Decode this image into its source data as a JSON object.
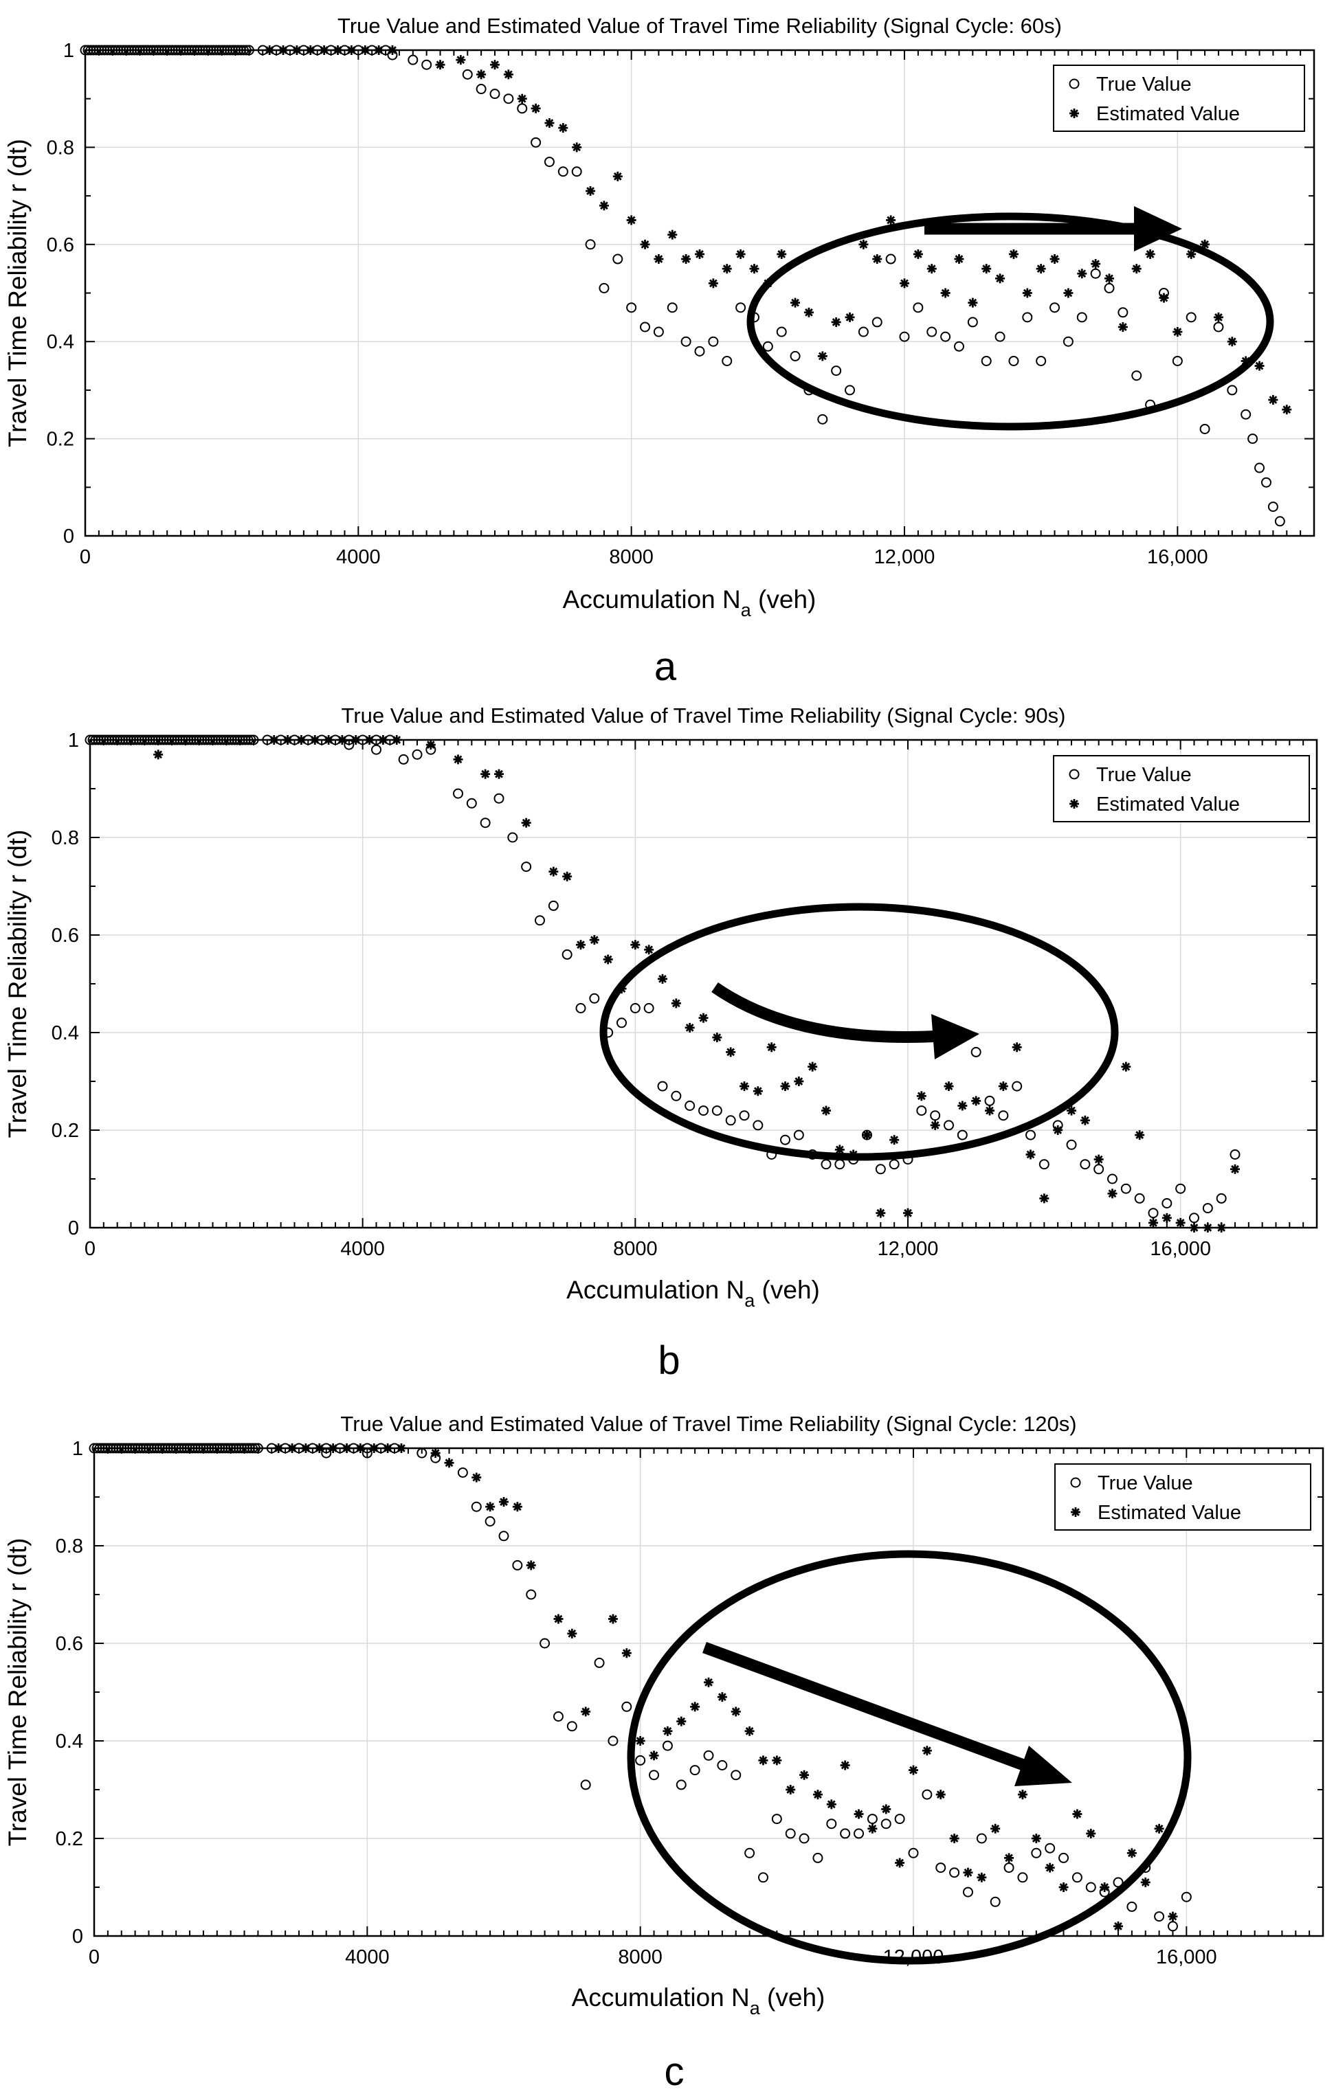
{
  "chart_data": [
    {
      "type": "scatter",
      "title": "True Value and Estimated Value of Travel Time Reliability (Signal Cycle: 60s)",
      "xlabel": "Accumulation",
      "xlabel_sub": "a",
      "xlabel_unit": "(veh)",
      "xlabel_main": "Accumulation N",
      "ylabel": "Travel Time Reliability r (dt)",
      "panel_label": "a",
      "xlim": [
        0,
        18000
      ],
      "ylim": [
        0,
        1
      ],
      "xticks": [
        0,
        4000,
        8000,
        12000,
        16000
      ],
      "xtick_labels": [
        "0",
        "4000",
        "8000",
        "12,000",
        "16,000"
      ],
      "yticks": [
        0,
        0.2,
        0.4,
        0.6,
        0.8,
        1
      ],
      "ytick_labels": [
        "0",
        "0.2",
        "0.4",
        "0.6",
        "0.8",
        "1"
      ],
      "legend": [
        "True Value",
        "Estimated Value"
      ],
      "legend_position": "top-right",
      "annotation": "ellipse with straight horizontal arrow",
      "series": [
        {
          "name": "True Value",
          "marker": "circle",
          "x": [
            4500,
            4800,
            5000,
            5600,
            5800,
            6000,
            6200,
            6400,
            6600,
            6800,
            7000,
            7200,
            7400,
            7600,
            7800,
            8000,
            8200,
            8400,
            8600,
            8800,
            9000,
            9200,
            9400,
            9600,
            9800,
            10000,
            10200,
            10400,
            10600,
            10800,
            11000,
            11200,
            11400,
            11600,
            11800,
            12000,
            12200,
            12400,
            12600,
            12800,
            13000,
            13200,
            13400,
            13600,
            13800,
            14000,
            14200,
            14400,
            14600,
            14800,
            15000,
            15200,
            15400,
            15600,
            15800,
            16000,
            16200,
            16400,
            16600,
            16800,
            17000,
            17100,
            17200,
            17300,
            17400,
            17500
          ],
          "y": [
            0.99,
            0.98,
            0.97,
            0.95,
            0.92,
            0.91,
            0.9,
            0.88,
            0.81,
            0.77,
            0.75,
            0.75,
            0.6,
            0.51,
            0.57,
            0.47,
            0.43,
            0.42,
            0.47,
            0.4,
            0.38,
            0.4,
            0.36,
            0.47,
            0.45,
            0.39,
            0.42,
            0.37,
            0.3,
            0.24,
            0.34,
            0.3,
            0.42,
            0.44,
            0.57,
            0.41,
            0.47,
            0.42,
            0.41,
            0.39,
            0.44,
            0.36,
            0.41,
            0.36,
            0.45,
            0.36,
            0.47,
            0.4,
            0.45,
            0.54,
            0.51,
            0.46,
            0.33,
            0.27,
            0.5,
            0.36,
            0.45,
            0.22,
            0.43,
            0.3,
            0.25,
            0.2,
            0.14,
            0.11,
            0.06,
            0.03
          ]
        },
        {
          "name": "Estimated Value",
          "marker": "asterisk",
          "x": [
            5200,
            5500,
            5800,
            6000,
            6200,
            6400,
            6600,
            6800,
            7000,
            7200,
            7400,
            7600,
            7800,
            8000,
            8200,
            8400,
            8600,
            8800,
            9000,
            9200,
            9400,
            9600,
            9800,
            10000,
            10200,
            10400,
            10600,
            10800,
            11000,
            11200,
            11400,
            11600,
            11800,
            12000,
            12200,
            12400,
            12600,
            12800,
            13000,
            13200,
            13400,
            13600,
            13800,
            14000,
            14200,
            14400,
            14600,
            14800,
            15000,
            15200,
            15400,
            15600,
            15800,
            16000,
            16200,
            16400,
            16600,
            16800,
            17000,
            17200,
            17400,
            17600
          ],
          "y": [
            0.97,
            0.98,
            0.95,
            0.97,
            0.95,
            0.9,
            0.88,
            0.85,
            0.84,
            0.8,
            0.71,
            0.68,
            0.74,
            0.65,
            0.6,
            0.57,
            0.62,
            0.57,
            0.58,
            0.52,
            0.55,
            0.58,
            0.55,
            0.52,
            0.58,
            0.48,
            0.46,
            0.37,
            0.44,
            0.45,
            0.6,
            0.57,
            0.65,
            0.52,
            0.58,
            0.55,
            0.5,
            0.57,
            0.48,
            0.55,
            0.53,
            0.58,
            0.5,
            0.55,
            0.57,
            0.5,
            0.54,
            0.56,
            0.53,
            0.43,
            0.55,
            0.58,
            0.49,
            0.42,
            0.58,
            0.6,
            0.45,
            0.4,
            0.36,
            0.35,
            0.28,
            0.26
          ]
        }
      ]
    },
    {
      "type": "scatter",
      "title": "True Value and Estimated Value of Travel Time Reliability (Signal Cycle: 90s)",
      "xlabel": "Accumulation",
      "xlabel_sub": "a",
      "xlabel_unit": "(veh)",
      "xlabel_main": "Accumulation N",
      "ylabel": "Travel Time Reliability r (dt)",
      "panel_label": "b",
      "xlim": [
        0,
        18000
      ],
      "ylim": [
        0,
        1
      ],
      "xticks": [
        0,
        4000,
        8000,
        12000,
        16000
      ],
      "xtick_labels": [
        "0",
        "4000",
        "8000",
        "12,000",
        "16,000"
      ],
      "yticks": [
        0,
        0.2,
        0.4,
        0.6,
        0.8,
        1
      ],
      "ytick_labels": [
        "0",
        "0.2",
        "0.4",
        "0.6",
        "0.8",
        "1"
      ],
      "legend": [
        "True Value",
        "Estimated Value"
      ],
      "legend_position": "top-right",
      "annotation": "ellipse with curved arrow",
      "series": [
        {
          "name": "True Value",
          "marker": "circle",
          "x": [
            3800,
            4200,
            4600,
            4800,
            5000,
            5400,
            5600,
            5800,
            6000,
            6200,
            6400,
            6600,
            6800,
            7000,
            7200,
            7400,
            7600,
            7800,
            8000,
            8200,
            8400,
            8600,
            8800,
            9000,
            9200,
            9400,
            9600,
            9800,
            10000,
            10200,
            10400,
            10600,
            10800,
            11000,
            11200,
            11400,
            11600,
            11800,
            12000,
            12200,
            12400,
            12600,
            12800,
            13000,
            13200,
            13400,
            13600,
            13800,
            14000,
            14200,
            14400,
            14600,
            14800,
            15000,
            15200,
            15400,
            15600,
            15800,
            16000,
            16200,
            16400,
            16600,
            16800
          ],
          "y": [
            0.99,
            0.98,
            0.96,
            0.97,
            0.98,
            0.89,
            0.87,
            0.83,
            0.88,
            0.8,
            0.74,
            0.63,
            0.66,
            0.56,
            0.45,
            0.47,
            0.4,
            0.42,
            0.45,
            0.45,
            0.29,
            0.27,
            0.25,
            0.24,
            0.24,
            0.22,
            0.23,
            0.21,
            0.15,
            0.18,
            0.19,
            0.15,
            0.13,
            0.13,
            0.14,
            0.19,
            0.12,
            0.13,
            0.14,
            0.24,
            0.23,
            0.21,
            0.19,
            0.36,
            0.26,
            0.23,
            0.29,
            0.19,
            0.13,
            0.21,
            0.17,
            0.13,
            0.12,
            0.1,
            0.08,
            0.06,
            0.03,
            0.05,
            0.08,
            0.02,
            0.04,
            0.06,
            0.15
          ]
        },
        {
          "name": "Estimated Value",
          "marker": "asterisk",
          "x": [
            1000,
            5000,
            5400,
            5800,
            6000,
            6400,
            6800,
            7000,
            7200,
            7400,
            7600,
            7800,
            8000,
            8200,
            8400,
            8600,
            8800,
            9000,
            9200,
            9400,
            9600,
            9800,
            10000,
            10200,
            10400,
            10600,
            10800,
            11000,
            11200,
            11400,
            11600,
            11800,
            12000,
            12200,
            12400,
            12600,
            12800,
            13000,
            13200,
            13400,
            13600,
            13800,
            14000,
            14200,
            14400,
            14600,
            14800,
            15000,
            15200,
            15400,
            15600,
            15800,
            16000,
            16200,
            16400,
            16600,
            16800
          ],
          "y": [
            0.97,
            0.99,
            0.96,
            0.93,
            0.93,
            0.83,
            0.73,
            0.72,
            0.58,
            0.59,
            0.55,
            0.49,
            0.58,
            0.57,
            0.51,
            0.46,
            0.41,
            0.43,
            0.39,
            0.36,
            0.29,
            0.28,
            0.37,
            0.29,
            0.3,
            0.33,
            0.24,
            0.16,
            0.15,
            0.19,
            0.03,
            0.18,
            0.03,
            0.27,
            0.21,
            0.29,
            0.25,
            0.26,
            0.24,
            0.29,
            0.37,
            0.15,
            0.06,
            0.2,
            0.24,
            0.22,
            0.14,
            0.07,
            0.33,
            0.19,
            0.01,
            0.02,
            0.01,
            0.0,
            0.0,
            0.0,
            0.12
          ]
        }
      ]
    },
    {
      "type": "scatter",
      "title": "True Value and Estimated Value of Travel Time Reliability (Signal Cycle: 120s)",
      "xlabel": "Accumulation",
      "xlabel_sub": "a",
      "xlabel_unit": "(veh)",
      "xlabel_main": "Accumulation N",
      "ylabel": "Travel Time Reliability r (dt)",
      "panel_label": "c",
      "xlim": [
        0,
        18000
      ],
      "ylim": [
        0,
        1
      ],
      "xticks": [
        0,
        4000,
        8000,
        12000,
        16000
      ],
      "xtick_labels": [
        "0",
        "4000",
        "8000",
        "12,000",
        "16,000"
      ],
      "yticks": [
        0,
        0.2,
        0.4,
        0.6,
        0.8,
        1
      ],
      "ytick_labels": [
        "0",
        "0.2",
        "0.4",
        "0.6",
        "0.8",
        "1"
      ],
      "legend": [
        "True Value",
        "Estimated Value"
      ],
      "legend_position": "top-right",
      "annotation": "ellipse with downward diagonal arrow",
      "series": [
        {
          "name": "True Value",
          "marker": "circle",
          "x": [
            3400,
            4000,
            4800,
            5000,
            5400,
            5600,
            5800,
            6000,
            6200,
            6400,
            6600,
            6800,
            7000,
            7200,
            7400,
            7600,
            7800,
            8000,
            8200,
            8400,
            8600,
            8800,
            9000,
            9200,
            9400,
            9600,
            9800,
            10000,
            10200,
            10400,
            10600,
            10800,
            11000,
            11200,
            11400,
            11600,
            11800,
            12000,
            12200,
            12400,
            12600,
            12800,
            13000,
            13200,
            13400,
            13600,
            13800,
            14000,
            14200,
            14400,
            14600,
            14800,
            15000,
            15200,
            15400,
            15600,
            15800,
            16000
          ],
          "y": [
            0.99,
            0.99,
            0.99,
            0.98,
            0.95,
            0.88,
            0.85,
            0.82,
            0.76,
            0.7,
            0.6,
            0.45,
            0.43,
            0.31,
            0.56,
            0.4,
            0.47,
            0.36,
            0.33,
            0.39,
            0.31,
            0.34,
            0.37,
            0.35,
            0.33,
            0.17,
            0.12,
            0.24,
            0.21,
            0.2,
            0.16,
            0.23,
            0.21,
            0.21,
            0.24,
            0.23,
            0.24,
            0.17,
            0.29,
            0.14,
            0.13,
            0.09,
            0.2,
            0.07,
            0.14,
            0.12,
            0.17,
            0.18,
            0.16,
            0.12,
            0.1,
            0.09,
            0.11,
            0.06,
            0.14,
            0.04,
            0.02,
            0.08
          ]
        },
        {
          "name": "Estimated Value",
          "marker": "asterisk",
          "x": [
            5000,
            5200,
            5600,
            5800,
            6000,
            6200,
            6400,
            6800,
            7000,
            7200,
            7600,
            7800,
            8000,
            8200,
            8400,
            8600,
            8800,
            9000,
            9200,
            9400,
            9600,
            9800,
            10000,
            10200,
            10400,
            10600,
            10800,
            11000,
            11200,
            11400,
            11600,
            11800,
            12000,
            12200,
            12400,
            12600,
            12800,
            13000,
            13200,
            13400,
            13600,
            13800,
            14000,
            14200,
            14400,
            14600,
            14800,
            15000,
            15200,
            15400,
            15600,
            15800
          ],
          "y": [
            0.99,
            0.97,
            0.94,
            0.88,
            0.89,
            0.88,
            0.76,
            0.65,
            0.62,
            0.46,
            0.65,
            0.58,
            0.4,
            0.37,
            0.42,
            0.44,
            0.47,
            0.52,
            0.49,
            0.46,
            0.42,
            0.36,
            0.36,
            0.3,
            0.33,
            0.29,
            0.27,
            0.35,
            0.25,
            0.22,
            0.26,
            0.15,
            0.34,
            0.38,
            0.29,
            0.2,
            0.13,
            0.12,
            0.22,
            0.16,
            0.29,
            0.2,
            0.14,
            0.1,
            0.25,
            0.21,
            0.1,
            0.02,
            0.17,
            0.11,
            0.22,
            0.04
          ]
        }
      ]
    }
  ]
}
